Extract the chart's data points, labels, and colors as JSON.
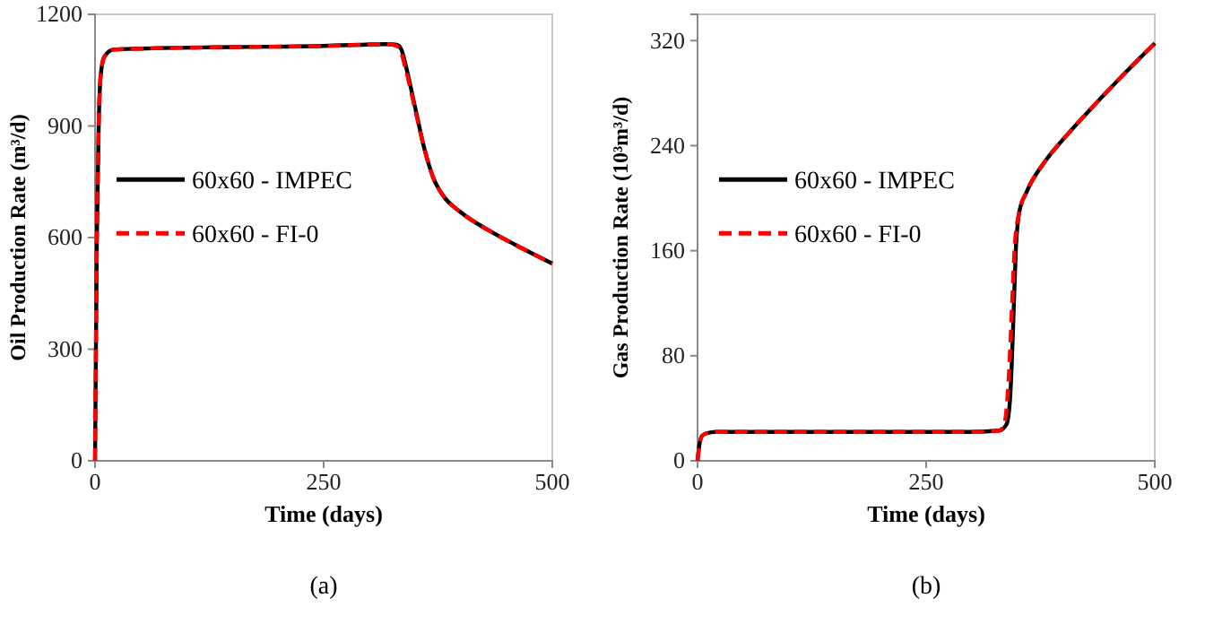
{
  "chart_data": [
    {
      "type": "line",
      "xlabel": "Time (days)",
      "ylabel": "Oil Production Rate (m³/d)",
      "xlim": [
        0,
        500
      ],
      "xticks": [
        0,
        250,
        500
      ],
      "ylim": [
        0,
        1200
      ],
      "yticks": [
        0,
        300,
        600,
        900,
        1200
      ],
      "legend": "left",
      "annotations": [
        "(a)"
      ],
      "series": [
        {
          "name": "60x60 - IMPEC",
          "color": "#000000",
          "line_style": "solid",
          "x": [
            0,
            2,
            4,
            6,
            10,
            20,
            50,
            150,
            250,
            320,
            330,
            335,
            340,
            350,
            360,
            370,
            380,
            400,
            430,
            460,
            500
          ],
          "values": [
            0,
            600,
            900,
            1030,
            1085,
            1105,
            1108,
            1112,
            1115,
            1120,
            1118,
            1105,
            1060,
            950,
            840,
            760,
            715,
            668,
            620,
            580,
            530
          ]
        },
        {
          "name": "60x60 - FI-0",
          "color": "#ff0000",
          "line_style": "dashed",
          "x": [
            0,
            2,
            4,
            6,
            10,
            20,
            50,
            150,
            250,
            320,
            330,
            335,
            340,
            350,
            360,
            370,
            380,
            400,
            430,
            460,
            500
          ],
          "values": [
            0,
            600,
            900,
            1030,
            1085,
            1105,
            1108,
            1112,
            1115,
            1120,
            1115,
            1095,
            1050,
            945,
            840,
            760,
            715,
            668,
            620,
            580,
            530
          ]
        }
      ]
    },
    {
      "type": "line",
      "xlabel": "Time (days)",
      "ylabel": "Gas Production Rate (10³m³/d)",
      "xlim": [
        0,
        500
      ],
      "xticks": [
        0,
        250,
        500
      ],
      "ylim": [
        0,
        340
      ],
      "yticks": [
        0,
        80,
        160,
        240,
        320
      ],
      "legend": "left",
      "annotations": [
        "(b)"
      ],
      "series": [
        {
          "name": "60x60 - IMPEC",
          "color": "#000000",
          "line_style": "solid",
          "x": [
            0,
            2,
            5,
            10,
            20,
            100,
            300,
            330,
            338,
            342,
            345,
            348,
            352,
            360,
            380,
            400,
            430,
            460,
            500
          ],
          "values": [
            0,
            12,
            19,
            21,
            22,
            22,
            22,
            23,
            28,
            50,
            100,
            160,
            190,
            205,
            228,
            245,
            268,
            290,
            318
          ]
        },
        {
          "name": "60x60 - FI-0",
          "color": "#ff0000",
          "line_style": "dashed",
          "x": [
            0,
            2,
            5,
            10,
            20,
            100,
            300,
            330,
            336,
            340,
            344,
            347,
            352,
            360,
            380,
            400,
            430,
            460,
            500
          ],
          "values": [
            0,
            12,
            19,
            21,
            22,
            22,
            22,
            23,
            30,
            60,
            120,
            165,
            190,
            205,
            228,
            245,
            268,
            290,
            318
          ]
        }
      ]
    }
  ]
}
